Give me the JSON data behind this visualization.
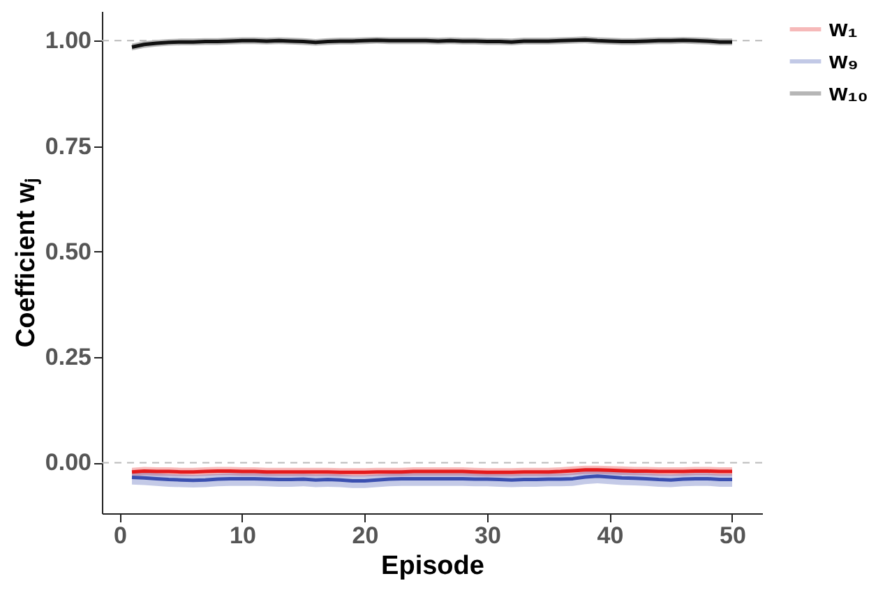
{
  "chart_data": {
    "type": "line",
    "xlabel": "Episode",
    "ylabel": "Coefficient wⱼ",
    "x": [
      1,
      2,
      3,
      4,
      5,
      6,
      7,
      8,
      9,
      10,
      11,
      12,
      13,
      14,
      15,
      16,
      17,
      18,
      19,
      20,
      21,
      22,
      23,
      24,
      25,
      26,
      27,
      28,
      29,
      30,
      31,
      32,
      33,
      34,
      35,
      36,
      37,
      38,
      39,
      40,
      41,
      42,
      43,
      44,
      45,
      46,
      47,
      48,
      49,
      50
    ],
    "series": [
      {
        "name": "w₁",
        "color": "#e41a1c",
        "values": [
          -0.022,
          -0.02,
          -0.021,
          -0.021,
          -0.022,
          -0.022,
          -0.021,
          -0.02,
          -0.02,
          -0.021,
          -0.021,
          -0.022,
          -0.022,
          -0.022,
          -0.022,
          -0.022,
          -0.022,
          -0.023,
          -0.023,
          -0.023,
          -0.022,
          -0.022,
          -0.022,
          -0.021,
          -0.021,
          -0.021,
          -0.021,
          -0.021,
          -0.022,
          -0.023,
          -0.023,
          -0.023,
          -0.022,
          -0.022,
          -0.022,
          -0.021,
          -0.019,
          -0.017,
          -0.017,
          -0.018,
          -0.019,
          -0.02,
          -0.02,
          -0.021,
          -0.021,
          -0.021,
          -0.02,
          -0.02,
          -0.021,
          -0.021
        ],
        "lower": [
          -0.032,
          -0.03,
          -0.031,
          -0.031,
          -0.032,
          -0.032,
          -0.031,
          -0.03,
          -0.03,
          -0.031,
          -0.031,
          -0.032,
          -0.032,
          -0.032,
          -0.032,
          -0.032,
          -0.032,
          -0.033,
          -0.033,
          -0.033,
          -0.032,
          -0.032,
          -0.032,
          -0.031,
          -0.031,
          -0.031,
          -0.031,
          -0.031,
          -0.032,
          -0.033,
          -0.033,
          -0.033,
          -0.032,
          -0.032,
          -0.032,
          -0.031,
          -0.029,
          -0.027,
          -0.027,
          -0.028,
          -0.029,
          -0.03,
          -0.03,
          -0.031,
          -0.031,
          -0.031,
          -0.03,
          -0.03,
          -0.031,
          -0.031
        ],
        "upper": [
          -0.012,
          -0.01,
          -0.011,
          -0.011,
          -0.012,
          -0.012,
          -0.011,
          -0.01,
          -0.01,
          -0.011,
          -0.011,
          -0.012,
          -0.012,
          -0.012,
          -0.012,
          -0.012,
          -0.012,
          -0.013,
          -0.013,
          -0.013,
          -0.012,
          -0.012,
          -0.012,
          -0.011,
          -0.011,
          -0.011,
          -0.011,
          -0.011,
          -0.012,
          -0.013,
          -0.013,
          -0.013,
          -0.012,
          -0.012,
          -0.012,
          -0.011,
          -0.009,
          -0.007,
          -0.007,
          -0.008,
          -0.009,
          -0.01,
          -0.01,
          -0.011,
          -0.011,
          -0.011,
          -0.01,
          -0.01,
          -0.011,
          -0.011
        ]
      },
      {
        "name": "w₉",
        "color": "#3a4fb0",
        "values": [
          -0.035,
          -0.036,
          -0.038,
          -0.04,
          -0.041,
          -0.042,
          -0.041,
          -0.039,
          -0.038,
          -0.038,
          -0.038,
          -0.039,
          -0.04,
          -0.04,
          -0.039,
          -0.041,
          -0.04,
          -0.041,
          -0.043,
          -0.043,
          -0.041,
          -0.039,
          -0.038,
          -0.038,
          -0.038,
          -0.038,
          -0.038,
          -0.038,
          -0.039,
          -0.039,
          -0.04,
          -0.041,
          -0.04,
          -0.04,
          -0.039,
          -0.039,
          -0.038,
          -0.034,
          -0.032,
          -0.034,
          -0.036,
          -0.037,
          -0.038,
          -0.04,
          -0.041,
          -0.039,
          -0.038,
          -0.038,
          -0.04,
          -0.04
        ],
        "lower": [
          -0.052,
          -0.053,
          -0.055,
          -0.057,
          -0.058,
          -0.059,
          -0.058,
          -0.056,
          -0.055,
          -0.055,
          -0.055,
          -0.056,
          -0.057,
          -0.057,
          -0.056,
          -0.058,
          -0.057,
          -0.058,
          -0.06,
          -0.06,
          -0.058,
          -0.056,
          -0.055,
          -0.055,
          -0.055,
          -0.055,
          -0.055,
          -0.055,
          -0.056,
          -0.056,
          -0.057,
          -0.058,
          -0.057,
          -0.057,
          -0.056,
          -0.056,
          -0.055,
          -0.051,
          -0.049,
          -0.051,
          -0.053,
          -0.054,
          -0.055,
          -0.057,
          -0.058,
          -0.056,
          -0.055,
          -0.055,
          -0.057,
          -0.057
        ],
        "upper": [
          -0.022,
          -0.023,
          -0.025,
          -0.027,
          -0.028,
          -0.029,
          -0.028,
          -0.026,
          -0.025,
          -0.025,
          -0.025,
          -0.026,
          -0.027,
          -0.027,
          -0.026,
          -0.028,
          -0.027,
          -0.028,
          -0.03,
          -0.03,
          -0.028,
          -0.026,
          -0.025,
          -0.025,
          -0.025,
          -0.025,
          -0.025,
          -0.025,
          -0.026,
          -0.026,
          -0.027,
          -0.028,
          -0.027,
          -0.027,
          -0.026,
          -0.026,
          -0.025,
          -0.021,
          -0.019,
          -0.021,
          -0.023,
          -0.024,
          -0.025,
          -0.027,
          -0.028,
          -0.026,
          -0.025,
          -0.025,
          -0.027,
          -0.027
        ]
      },
      {
        "name": "w₁₀",
        "color": "#111111",
        "values": [
          0.985,
          0.991,
          0.994,
          0.996,
          0.997,
          0.997,
          0.998,
          0.998,
          0.999,
          1.0,
          1.0,
          0.999,
          1.0,
          0.999,
          0.998,
          0.996,
          0.998,
          0.999,
          0.999,
          1.0,
          1.001,
          1.0,
          1.0,
          1.0,
          1.0,
          0.999,
          1.0,
          0.999,
          0.999,
          0.998,
          0.998,
          0.997,
          0.999,
          0.999,
          0.999,
          1.0,
          1.001,
          1.002,
          1.0,
          0.999,
          0.998,
          0.998,
          0.999,
          1.0,
          1.0,
          1.001,
          1.0,
          0.999,
          0.997,
          0.997
        ],
        "lower": [
          0.977,
          0.983,
          0.986,
          0.988,
          0.989,
          0.989,
          0.99,
          0.99,
          0.991,
          0.992,
          0.992,
          0.991,
          0.992,
          0.991,
          0.99,
          0.988,
          0.99,
          0.991,
          0.991,
          0.992,
          0.993,
          0.992,
          0.992,
          0.992,
          0.992,
          0.991,
          0.992,
          0.991,
          0.991,
          0.99,
          0.99,
          0.989,
          0.991,
          0.991,
          0.991,
          0.992,
          0.993,
          0.994,
          0.992,
          0.991,
          0.99,
          0.99,
          0.991,
          0.992,
          0.992,
          0.993,
          0.992,
          0.991,
          0.989,
          0.989
        ],
        "upper": [
          0.993,
          0.999,
          1.002,
          1.004,
          1.005,
          1.005,
          1.006,
          1.006,
          1.007,
          1.008,
          1.008,
          1.007,
          1.008,
          1.007,
          1.006,
          1.004,
          1.006,
          1.007,
          1.007,
          1.008,
          1.009,
          1.008,
          1.008,
          1.008,
          1.008,
          1.007,
          1.008,
          1.007,
          1.007,
          1.006,
          1.006,
          1.005,
          1.007,
          1.007,
          1.007,
          1.008,
          1.009,
          1.01,
          1.008,
          1.007,
          1.006,
          1.006,
          1.007,
          1.008,
          1.008,
          1.009,
          1.008,
          1.007,
          1.005,
          1.005
        ]
      }
    ],
    "xlim": [
      -1.45,
      52.45
    ],
    "xticks": [
      0,
      10,
      20,
      30,
      40,
      50
    ],
    "ylim": [
      -0.12,
      1.07
    ],
    "yticks": [
      {
        "value": 0,
        "label": "0.00"
      },
      {
        "value": 0.25,
        "label": "0.25"
      },
      {
        "value": 0.5,
        "label": "0.50"
      },
      {
        "value": 0.75,
        "label": "0.75"
      },
      {
        "value": 1,
        "label": "1.00"
      }
    ],
    "ref_lines": [
      {
        "axis": "y",
        "value": 0,
        "label": null,
        "color": "#bbbbbb",
        "line_style": "dashed"
      },
      {
        "axis": "y",
        "value": 1,
        "label": null,
        "color": "#bbbbbb",
        "line_style": "dashed"
      }
    ],
    "grid": false,
    "legend": "right",
    "marker": "none",
    "line_style": "solid"
  }
}
